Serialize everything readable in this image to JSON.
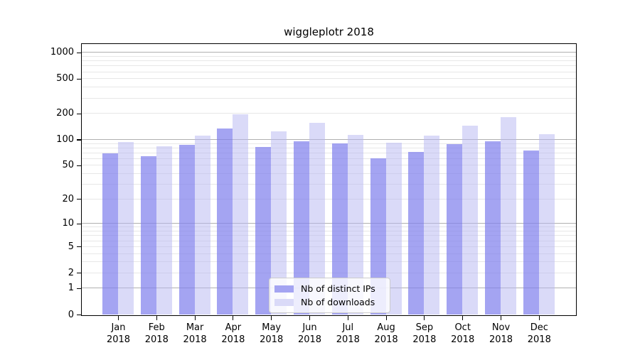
{
  "title": "wiggleplotr 2018",
  "chart_data": {
    "type": "bar",
    "title": "wiggleplotr 2018",
    "year": "2018",
    "months": [
      "Jan",
      "Feb",
      "Mar",
      "Apr",
      "May",
      "Jun",
      "Jul",
      "Aug",
      "Sep",
      "Oct",
      "Nov",
      "Dec"
    ],
    "categories": [
      "Jan 2018",
      "Feb 2018",
      "Mar 2018",
      "Apr 2018",
      "May 2018",
      "Jun 2018",
      "Jul 2018",
      "Aug 2018",
      "Sep 2018",
      "Oct 2018",
      "Nov 2018",
      "Dec 2018"
    ],
    "series": [
      {
        "name": "Nb of distinct IPs",
        "swatch": "#a4a4f2",
        "fill": "rgba(129,129,237,0.72)",
        "values": [
          69,
          64,
          87,
          133,
          82,
          95,
          90,
          61,
          72,
          88,
          95,
          74
        ]
      },
      {
        "name": "Nb of downloads",
        "swatch": "#dadaf8",
        "fill": "rgba(181,181,241,0.5)",
        "values": [
          93,
          83,
          110,
          195,
          124,
          156,
          114,
          91,
          110,
          144,
          182,
          116
        ]
      }
    ],
    "y_scale": "log1p",
    "y_ticks": [
      1000,
      500,
      200,
      100,
      50,
      20,
      10,
      5,
      2,
      1,
      0
    ],
    "ylim": [
      0,
      1250
    ],
    "grid": "both",
    "legend_position": "inside-bottom-center",
    "colors": {
      "spine": "#000000",
      "grid_major": "#b0b0b0",
      "grid_minor": "#e7e7e7",
      "background": "#ffffff"
    }
  }
}
